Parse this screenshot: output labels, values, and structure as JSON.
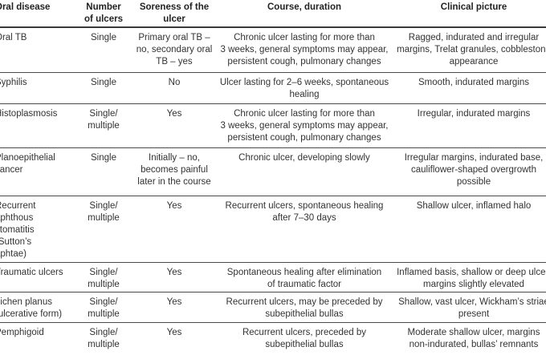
{
  "table": {
    "columns": [
      "Oral disease",
      "Number\nof ulcers",
      "Soreness of the\nulcer",
      "Course, duration",
      "Clinical picture"
    ],
    "rows": [
      {
        "disease": "Oral TB",
        "number": "Single",
        "soreness": "Primary oral TB –\nno, secondary oral\nTB – yes",
        "course": "Chronic ulcer lasting for more than\n3 weeks, general symptoms may appear,\npersistent cough, pulmonary changes",
        "clinical": "Ragged, indurated and irregular\nmargins, Trelat granules, cobblestone\nappearance"
      },
      {
        "disease": "Syphilis",
        "number": "Single",
        "soreness": "No",
        "course": "Ulcer lasting for 2–6 weeks, spontaneous\nhealing",
        "clinical": "Smooth, indurated margins"
      },
      {
        "disease": "Histoplasmosis",
        "number": "Single/\nmultiple",
        "soreness": "Yes",
        "course": "Chronic ulcer lasting for more than\n3 weeks, general symptoms may appear,\npersistent cough, pulmonary changes",
        "clinical": "Irregular, indurated margins"
      },
      {
        "disease": "Planoepithelial\ncancer",
        "number": "Single",
        "soreness": "Initially – no,\nbecomes painful\nlater in the course",
        "course": "Chronic ulcer, developing slowly",
        "clinical": "Irregular margins, indurated base,\ncauliflower-shaped overgrowth\npossible"
      },
      {
        "disease": "Recurrent\naphthous\nstomatitis\n(Sutton’s\naphtae)",
        "number": "Single/\nmultiple",
        "soreness": "Yes",
        "course": "Recurrent ulcers, spontaneous healing\nafter 7–30 days",
        "clinical": "Shallow ulcer, inflamed halo"
      },
      {
        "disease": "Traumatic ulcers",
        "number": "Single/\nmultiple",
        "soreness": "Yes",
        "course": "Spontaneous healing after elimination\nof traumatic factor",
        "clinical": "Inflamed basis, shallow or deep ulcer,\nmargins slightly elevated"
      },
      {
        "disease": "Lichen planus\n(ulcerative form)",
        "number": "Single/\nmultiple",
        "soreness": "Yes",
        "course": "Recurrent ulcers, may be preceded by\nsubepithelial bullas",
        "clinical": "Shallow, vast ulcer, Wickham’s striae\npresent"
      },
      {
        "disease": "Pemphigoid",
        "number": "Single/\nmultiple",
        "soreness": "Yes",
        "course": "Recurrent ulcers, preceded by\nsubepithelial bullas",
        "clinical": "Moderate shallow ulcer, margins\nnon-indurated, bullas’ remnants"
      }
    ]
  }
}
